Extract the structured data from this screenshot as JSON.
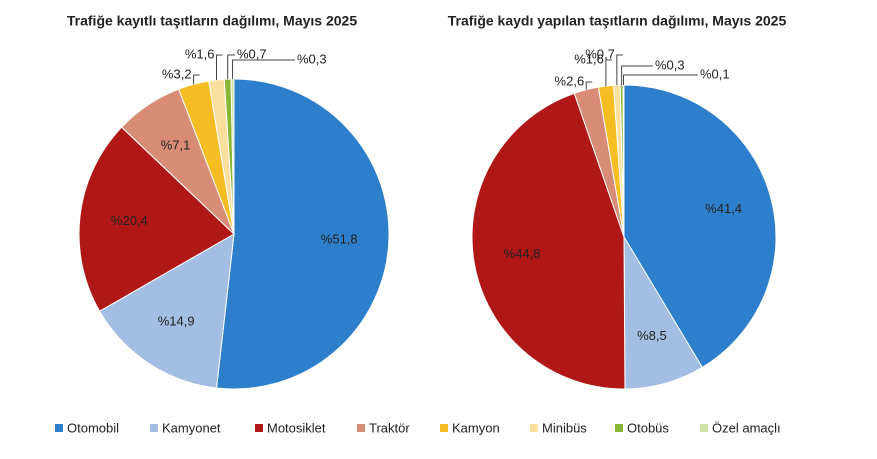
{
  "chart_data": [
    {
      "type": "pie",
      "title": "Trafiğe kayıtlı taşıtların dağılımı, Mayıs 2025",
      "categories": [
        "Otomobil",
        "Kamyonet",
        "Motosiklet",
        "Traktör",
        "Kamyon",
        "Minibüs",
        "Otobüs",
        "Özel amaçlı"
      ],
      "colors": [
        "#2e7fcb",
        "#a3bde3",
        "#b01717",
        "#d98c75",
        "#f5bd21",
        "#fbdf9f",
        "#8ab638",
        "#cde3a4"
      ],
      "values": [
        51.8,
        14.9,
        20.4,
        7.1,
        3.2,
        1.6,
        0.7,
        0.3
      ],
      "value_labels": [
        "%51,8",
        "%14,9",
        "%20,4",
        "%7,1",
        "%3,2",
        "%1,6",
        "%0,7",
        "%0,3"
      ]
    },
    {
      "type": "pie",
      "title": "Trafiğe kaydı yapılan taşıtların dağılımı, Mayıs 2025",
      "categories": [
        "Otomobil",
        "Kamyonet",
        "Motosiklet",
        "Traktör",
        "Kamyon",
        "Minibüs",
        "Otobüs",
        "Özel amaçlı"
      ],
      "colors": [
        "#2e7fcb",
        "#a3bde3",
        "#b01717",
        "#d98c75",
        "#f5bd21",
        "#fbdf9f",
        "#8ab638",
        "#cde3a4"
      ],
      "values": [
        41.4,
        8.5,
        44.8,
        2.6,
        1.6,
        0.7,
        0.3,
        0.1
      ],
      "value_labels": [
        "%41,4",
        "%8,5",
        "%44,8",
        "%2,6",
        "%1,6",
        "%0,7",
        "%0,3",
        "%0,1"
      ]
    }
  ]
}
